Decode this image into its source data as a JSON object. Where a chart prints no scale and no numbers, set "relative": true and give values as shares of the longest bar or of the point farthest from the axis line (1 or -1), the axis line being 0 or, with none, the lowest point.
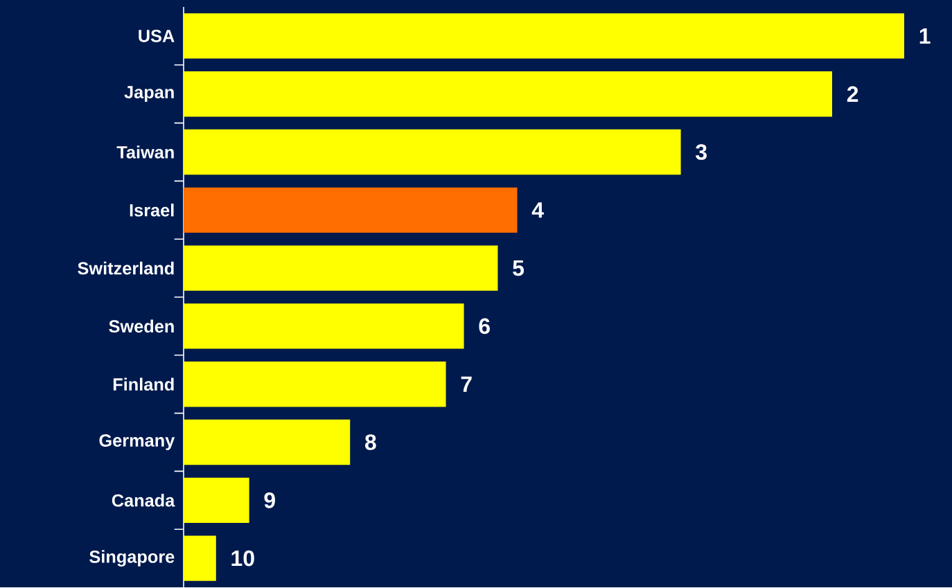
{
  "chart_data": {
    "type": "bar",
    "orientation": "horizontal",
    "relative": true,
    "categories": [
      "USA",
      "Japan",
      "Taiwan",
      "Israel",
      "Switzerland",
      "Sweden",
      "Finland",
      "Germany",
      "Canada",
      "Singapore"
    ],
    "values": [
      1,
      0.9,
      0.69,
      0.463,
      0.436,
      0.389,
      0.364,
      0.231,
      0.091,
      0.045
    ],
    "colors": [
      "#ffff00",
      "#ffff00",
      "#ffff00",
      "#ff6e00",
      "#ffff00",
      "#ffff00",
      "#ffff00",
      "#ffff00",
      "#ffff00",
      "#ffff00"
    ],
    "annotations": [
      {
        "text": "1",
        "x": 1,
        "y": "USA"
      },
      {
        "text": "2",
        "x": 0.9,
        "y": "Japan"
      },
      {
        "text": "3",
        "x": 0.69,
        "y": "Taiwan"
      },
      {
        "text": "4",
        "x": 0.463,
        "y": "Israel"
      },
      {
        "text": "5",
        "x": 0.436,
        "y": "Switzerland"
      },
      {
        "text": "6",
        "x": 0.389,
        "y": "Sweden"
      },
      {
        "text": "7",
        "x": 0.364,
        "y": "Finland"
      },
      {
        "text": "8",
        "x": 0.231,
        "y": "Germany"
      },
      {
        "text": "9",
        "x": 0.091,
        "y": "Canada"
      },
      {
        "text": "10",
        "x": 0.045,
        "y": "Singapore"
      }
    ]
  }
}
